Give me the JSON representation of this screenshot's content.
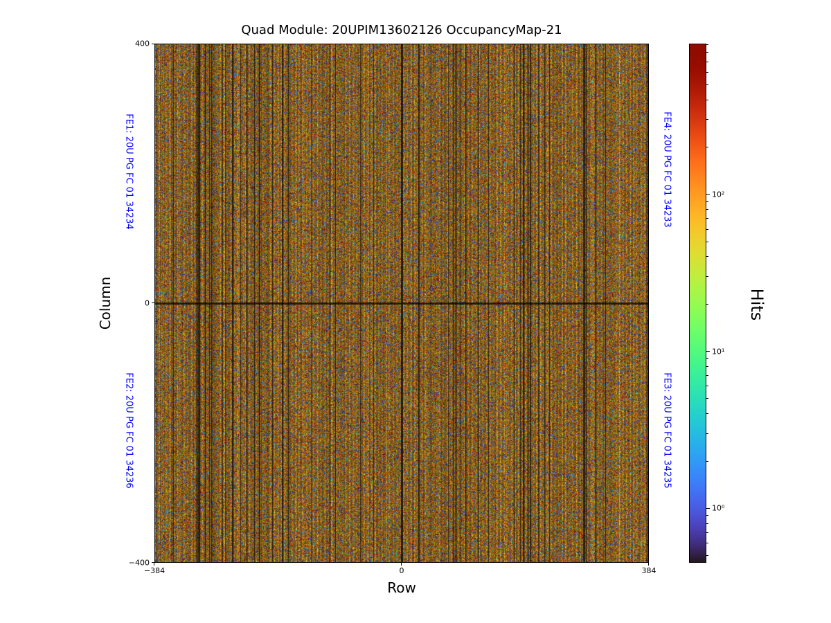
{
  "chart_data": {
    "type": "heatmap",
    "title": "Quad Module: 20UPIM13602126 OccupancyMap-21",
    "xlabel": "Row",
    "ylabel": "Column",
    "xlim": [
      -384,
      384
    ],
    "ylim": [
      -400,
      400
    ],
    "xtick_labels": [
      "−384",
      "0",
      "384"
    ],
    "ytick_labels": [
      "400",
      "0",
      "−400"
    ],
    "grid": false,
    "bins": {
      "x": 768,
      "y": 800
    },
    "colorbar": {
      "label": "Hits",
      "scale": "log",
      "colormap": "turbo",
      "vmin": 0.45,
      "vmax": 912,
      "tick_labels": [
        "10²",
        "10¹",
        "10⁰"
      ]
    },
    "annotations": [
      {
        "id": "FE1",
        "text": "FE1: 20U PG FC 01 34234",
        "side": "left",
        "half": "top",
        "color": "#0000ff"
      },
      {
        "id": "FE2",
        "text": "FE2: 20U PG FC 01 34236",
        "side": "left",
        "half": "bottom",
        "color": "#0000ff"
      },
      {
        "id": "FE4",
        "text": "FE4: 20U PG FC 01 34233",
        "side": "right",
        "half": "top",
        "color": "#0000ff"
      },
      {
        "id": "FE3",
        "text": "FE3: 20U PG FC 01 34235",
        "side": "right",
        "half": "bottom",
        "color": "#0000ff"
      }
    ],
    "texture": {
      "seed": 1337,
      "p_red": 0.045,
      "p_orange": 0.075,
      "p_blue": 0.16,
      "p_dark": 0.24,
      "center_cross_dark": true
    },
    "description": "Per-pixel hit-occupancy map of a quad pixel module: dense random speckle texture with fine vertical striping in dark olive/brown tones, scattered red/orange/blue speckles, and a darker cross at row 0 / column 0 marking the four front-end chip boundaries."
  }
}
